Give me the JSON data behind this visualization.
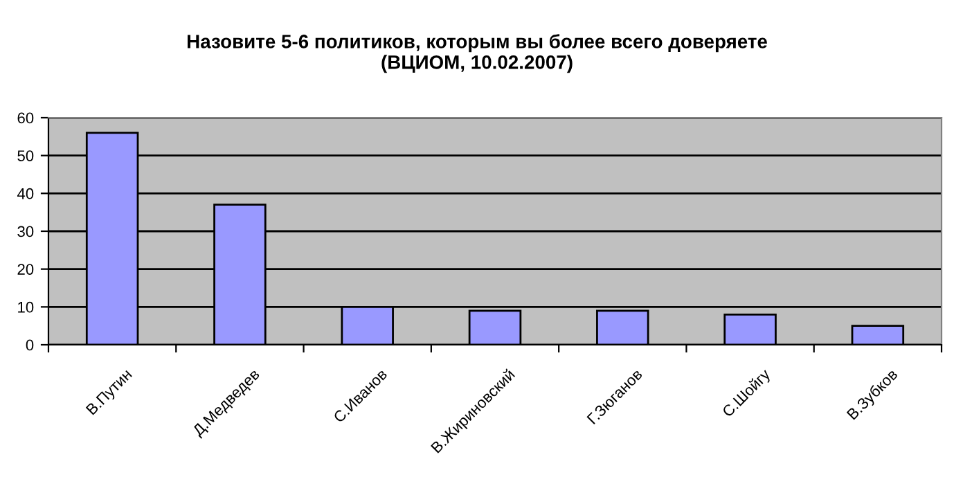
{
  "chart_data": {
    "type": "bar",
    "title": "Назовите 5-6 политиков, которым вы более всего доверяете\n(ВЦИОМ, 10.02.2007)",
    "categories": [
      "В.Путин",
      "Д.Медведев",
      "С.Иванов",
      "В.Жириновский",
      "Г.Зюганов",
      "С.Шойгу",
      "В.Зубков"
    ],
    "values": [
      56,
      37,
      10,
      9,
      9,
      8,
      5
    ],
    "color": "#9999ff",
    "ylim": [
      0,
      60
    ],
    "yticks": [
      0,
      10,
      20,
      30,
      40,
      50,
      60
    ],
    "grid": "y"
  }
}
